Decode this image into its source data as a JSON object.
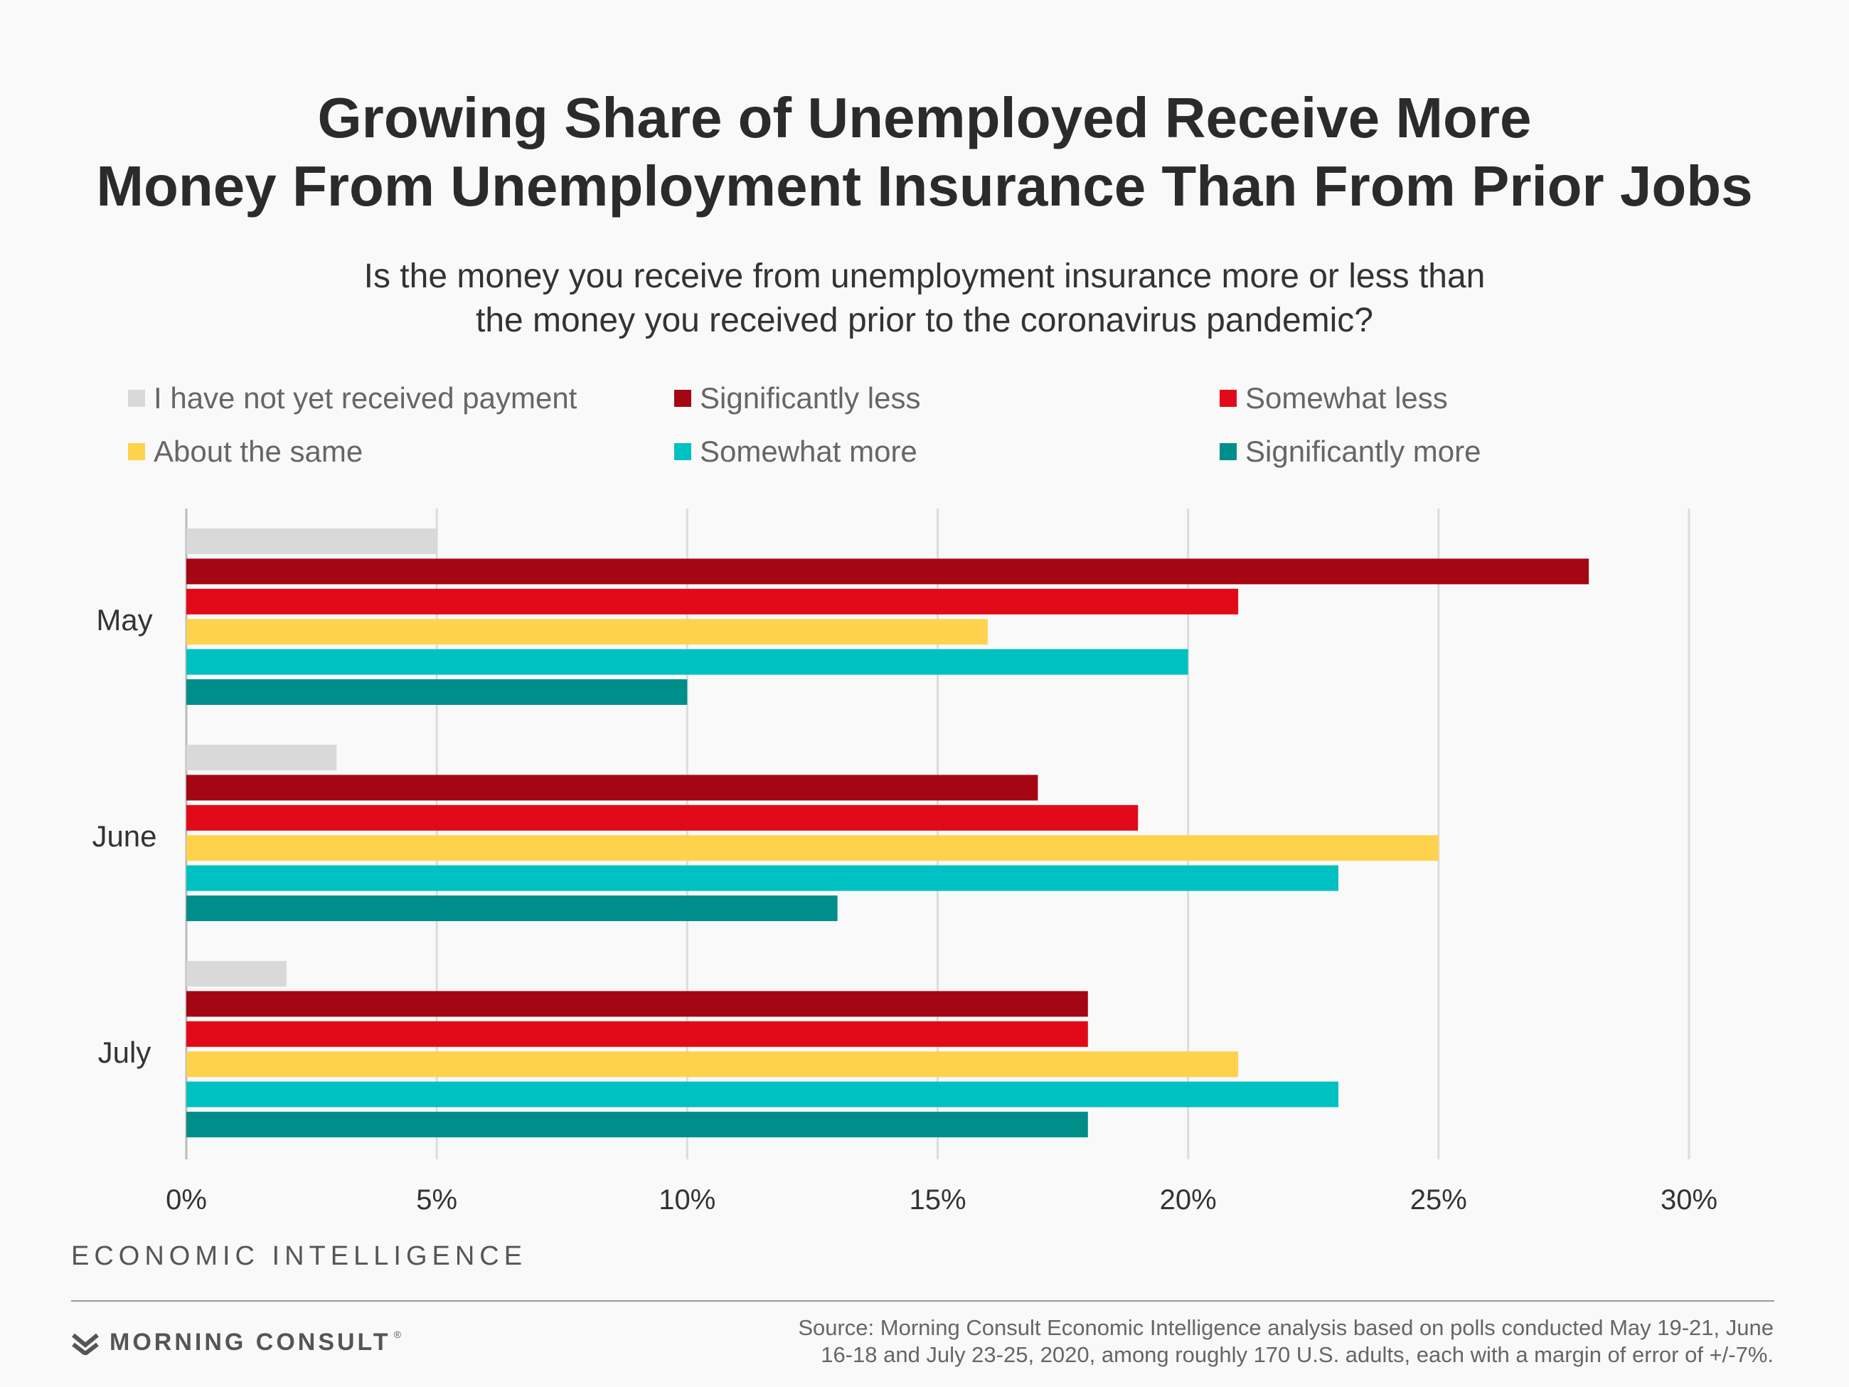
{
  "header": {
    "title_line1": "Growing Share of Unemployed Receive More",
    "title_line2": "Money From Unemployment Insurance Than From Prior Jobs",
    "question_line1": "Is the money you receive from unemployment insurance more or less than",
    "question_line2": "the money you received prior to the coronavirus pandemic?"
  },
  "chart_data": {
    "type": "bar",
    "orientation": "horizontal",
    "categories": [
      "May",
      "June",
      "July"
    ],
    "series": [
      {
        "name": "I have not yet received payment",
        "color": "#d9d9d9",
        "values": [
          5,
          3,
          2
        ]
      },
      {
        "name": "Significantly less",
        "color": "#a50613",
        "values": [
          28,
          17,
          18
        ]
      },
      {
        "name": "Somewhat less",
        "color": "#e20a19",
        "values": [
          21,
          19,
          18
        ]
      },
      {
        "name": "About the same",
        "color": "#ffd24d",
        "values": [
          16,
          25,
          21
        ]
      },
      {
        "name": "Somewhat more",
        "color": "#00c1c1",
        "values": [
          20,
          23,
          23
        ]
      },
      {
        "name": "Significantly more",
        "color": "#008e8a",
        "values": [
          10,
          13,
          18
        ]
      }
    ],
    "xlim": [
      0,
      30
    ],
    "xticks": [
      0,
      5,
      10,
      15,
      20,
      25,
      30
    ],
    "tick_suffix": "%",
    "grid": true,
    "legend": "top"
  },
  "footer": {
    "brand_line": "ECONOMIC INTELLIGENCE",
    "logo_text": "MORNING CONSULT",
    "logo_tm": "®",
    "logo_icon": "morning-consult-logo-icon",
    "source_line1": "Source: Morning Consult Economic Intelligence analysis based on polls conducted May 19-21, June",
    "source_line2": "16-18 and July 23-25, 2020, among roughly 170 U.S. adults, each with a margin of error of +/-7%."
  }
}
